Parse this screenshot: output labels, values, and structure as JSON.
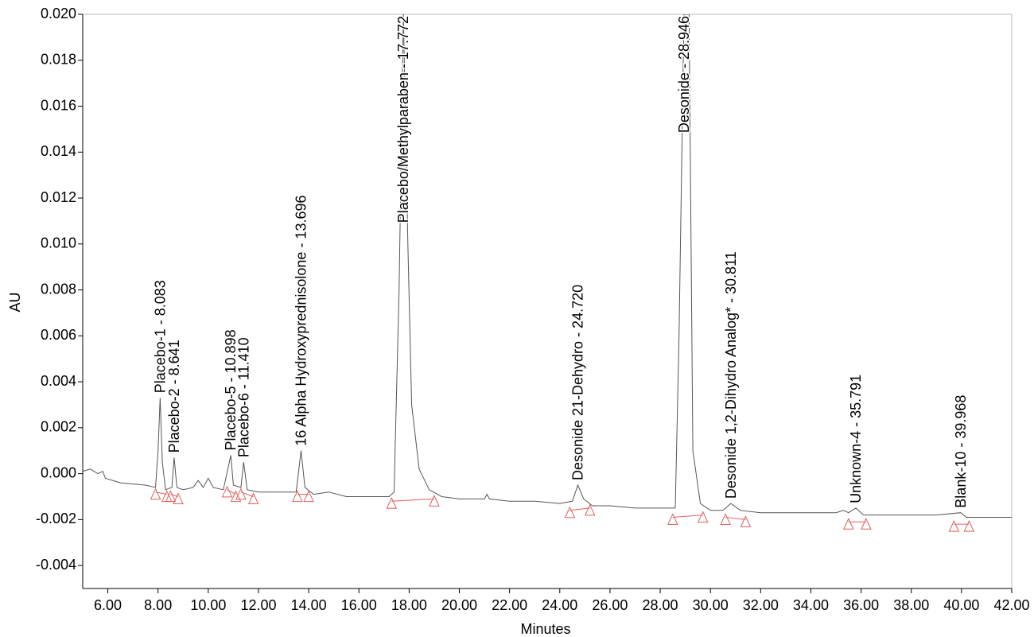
{
  "chart_data": {
    "type": "line",
    "x_label": "Minutes",
    "y_label": "AU",
    "xlim": [
      5,
      42
    ],
    "ylim": [
      -0.005,
      0.02
    ],
    "xticks": [
      {
        "value": 6,
        "label": "6.00"
      },
      {
        "value": 8,
        "label": "8.00"
      },
      {
        "value": 10,
        "label": "10.00"
      },
      {
        "value": 12,
        "label": "12.00"
      },
      {
        "value": 14,
        "label": "14.00"
      },
      {
        "value": 16,
        "label": "16.00"
      },
      {
        "value": 18,
        "label": "18.00"
      },
      {
        "value": 20,
        "label": "20.00"
      },
      {
        "value": 22,
        "label": "22.00"
      },
      {
        "value": 24,
        "label": "24.00"
      },
      {
        "value": 26,
        "label": "26.00"
      },
      {
        "value": 28,
        "label": "28.00"
      },
      {
        "value": 30,
        "label": "30.00"
      },
      {
        "value": 32,
        "label": "32.00"
      },
      {
        "value": 34,
        "label": "34.00"
      },
      {
        "value": 36,
        "label": "36.00"
      },
      {
        "value": 38,
        "label": "38.00"
      },
      {
        "value": 40,
        "label": "40.00"
      },
      {
        "value": 42,
        "label": "42.00"
      }
    ],
    "yticks": [
      {
        "value": -0.004,
        "label": "-0.004"
      },
      {
        "value": -0.002,
        "label": "-0.002"
      },
      {
        "value": 0,
        "label": "0.000"
      },
      {
        "value": 0.002,
        "label": "0.002"
      },
      {
        "value": 0.004,
        "label": "0.004"
      },
      {
        "value": 0.006,
        "label": "0.006"
      },
      {
        "value": 0.008,
        "label": "0.008"
      },
      {
        "value": 0.01,
        "label": "0.010"
      },
      {
        "value": 0.012,
        "label": "0.012"
      },
      {
        "value": 0.014,
        "label": "0.014"
      },
      {
        "value": 0.016,
        "label": "0.016"
      },
      {
        "value": 0.018,
        "label": "0.018"
      },
      {
        "value": 0.02,
        "label": "0.020"
      }
    ],
    "series": [
      {
        "color": "#555555",
        "x": [
          5.0,
          5.3,
          5.6,
          5.8,
          5.9,
          6.5,
          7.5,
          7.9,
          8.0,
          8.083,
          8.17,
          8.3,
          8.55,
          8.641,
          8.75,
          9.0,
          9.4,
          9.6,
          9.8,
          10.0,
          10.2,
          10.6,
          10.898,
          11.0,
          11.3,
          11.41,
          11.55,
          12.0,
          13.0,
          13.5,
          13.696,
          13.85,
          14.2,
          14.8,
          15.5,
          16.5,
          17.2,
          17.4,
          17.6,
          17.772,
          17.95,
          18.1,
          18.4,
          18.8,
          19.3,
          20.0,
          21.0,
          21.1,
          21.2,
          22.0,
          23.0,
          24.0,
          24.5,
          24.72,
          24.95,
          25.3,
          26.0,
          27.0,
          28.0,
          28.6,
          28.75,
          28.946,
          29.15,
          29.3,
          29.6,
          30.0,
          30.5,
          30.811,
          31.2,
          32.0,
          34.0,
          35.0,
          35.3,
          35.5,
          35.791,
          36.1,
          37.0,
          39.0,
          39.968,
          40.2,
          41.0,
          42.0
        ],
        "values": [
          0.0001,
          0.0002,
          0.0,
          0.0001,
          -0.0002,
          -0.0004,
          -0.0005,
          -0.0006,
          0.001,
          0.0033,
          0.0005,
          -0.0007,
          -0.0006,
          0.0007,
          -0.0006,
          -0.0007,
          -0.0006,
          -0.0003,
          -0.0006,
          -0.0002,
          -0.0006,
          -0.0007,
          0.0008,
          -0.0005,
          -0.0006,
          0.0005,
          -0.0007,
          -0.0008,
          -0.0008,
          -0.0008,
          0.001,
          -0.0006,
          -0.0009,
          -0.0008,
          -0.001,
          -0.001,
          -0.001,
          -0.0008,
          0.008,
          0.02,
          0.01,
          0.003,
          0.0002,
          -0.0007,
          -0.001,
          -0.0011,
          -0.0011,
          -0.0009,
          -0.0011,
          -0.0012,
          -0.0012,
          -0.0013,
          -0.0012,
          -0.0005,
          -0.0011,
          -0.0014,
          -0.0014,
          -0.0015,
          -0.0015,
          -0.0015,
          0.006,
          0.02,
          0.02,
          0.001,
          -0.0013,
          -0.0016,
          -0.0016,
          -0.0013,
          -0.0016,
          -0.0017,
          -0.0017,
          -0.0017,
          -0.0016,
          -0.0017,
          -0.0015,
          -0.0018,
          -0.0018,
          -0.0018,
          -0.0017,
          -0.0019,
          -0.0019,
          -0.0019
        ]
      }
    ],
    "baseline_color": "#e06060",
    "peaks": [
      {
        "label": "Placebo-1 - 8.083",
        "x": 8.083,
        "y": 0.0033,
        "baseline_x": [
          7.9,
          8.35
        ],
        "baseline_y": [
          -0.0008,
          -0.0009
        ]
      },
      {
        "label": "Placebo-2 - 8.641",
        "x": 8.641,
        "y": 0.0007,
        "baseline_x": [
          8.5,
          8.8
        ],
        "baseline_y": [
          -0.0009,
          -0.001
        ]
      },
      {
        "label": "Placebo-5 - 10.898",
        "x": 10.898,
        "y": 0.0008,
        "baseline_x": [
          10.75,
          11.1
        ],
        "baseline_y": [
          -0.0007,
          -0.0009
        ]
      },
      {
        "label": "Placebo-6 - 11.410",
        "x": 11.41,
        "y": 0.0005,
        "baseline_x": [
          11.3,
          11.8
        ],
        "baseline_y": [
          -0.0008,
          -0.001
        ]
      },
      {
        "label": "16 Alpha Hydroxyprednisolone - 13.696",
        "x": 13.696,
        "y": 0.001,
        "baseline_x": [
          13.55,
          14.0
        ],
        "baseline_y": [
          -0.0009,
          -0.0009
        ]
      },
      {
        "label": "Placebo/Methylparaben - 17.772",
        "x": 17.772,
        "y": 0.02,
        "baseline_x": [
          17.3,
          19.0
        ],
        "baseline_y": [
          -0.0012,
          -0.0011
        ]
      },
      {
        "label": "Desonide 21-Dehydro - 24.720",
        "x": 24.72,
        "y": -0.0005,
        "baseline_x": [
          24.4,
          25.2
        ],
        "baseline_y": [
          -0.0016,
          -0.0015
        ]
      },
      {
        "label": "Desonide - 28.946",
        "x": 28.946,
        "y": 0.02,
        "baseline_x": [
          28.5,
          29.7
        ],
        "baseline_y": [
          -0.0019,
          -0.0018
        ]
      },
      {
        "label": "Desonide 1,2-Dihydro Analog* - 30.811",
        "x": 30.811,
        "y": -0.0013,
        "baseline_x": [
          30.6,
          31.4
        ],
        "baseline_y": [
          -0.0019,
          -0.002
        ]
      },
      {
        "label": "Unknown-4 - 35.791",
        "x": 35.791,
        "y": -0.0015,
        "baseline_x": [
          35.5,
          36.2
        ],
        "baseline_y": [
          -0.0021,
          -0.0021
        ]
      },
      {
        "label": "Blank-10 - 39.968",
        "x": 39.968,
        "y": -0.0017,
        "baseline_x": [
          39.7,
          40.3
        ],
        "baseline_y": [
          -0.0022,
          -0.0022
        ]
      }
    ]
  }
}
